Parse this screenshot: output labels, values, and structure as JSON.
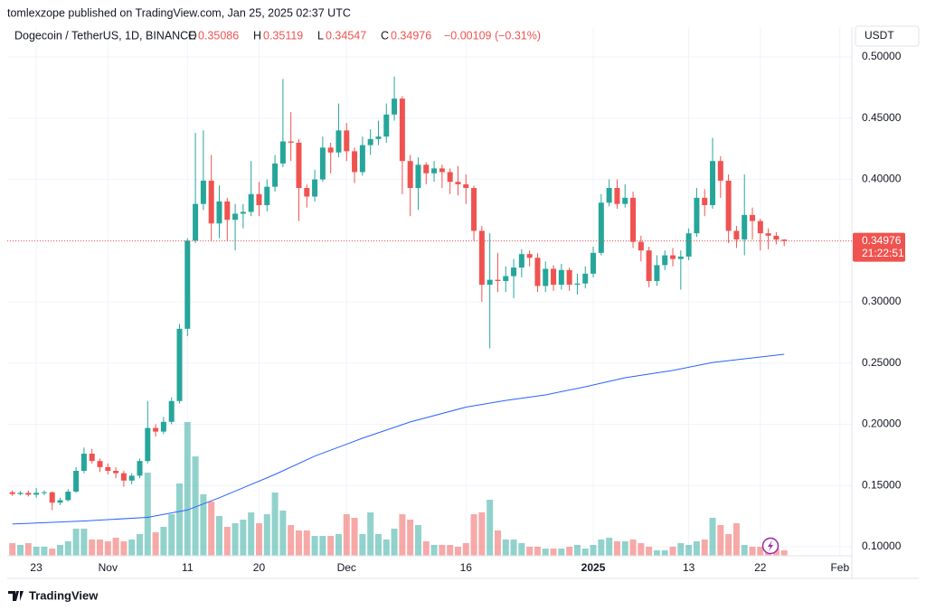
{
  "header": "tomlexzope published on TradingView.com, Jan 25, 2025 02:37 UTC",
  "footer": "TradingView",
  "chart_data": {
    "type": "candlestick",
    "legend": {
      "symbol": "Dogecoin / TetherUS, 1D, BINANCE",
      "labels": [
        "O",
        "H",
        "L",
        "C"
      ],
      "change": "−0.00109 (−0.31%)"
    },
    "currency": "USDT",
    "countdown": "21:22:51",
    "open": [
      0.1445,
      0.143,
      0.144,
      0.1425,
      0.144,
      0.1445,
      0.136,
      0.138,
      0.145,
      0.162,
      0.176,
      0.17,
      0.165,
      0.162,
      0.16,
      0.154,
      0.158,
      0.17,
      0.197,
      0.194,
      0.202,
      0.219,
      0.278,
      0.35,
      0.38,
      0.399,
      0.364,
      0.382,
      0.367,
      0.372,
      0.3735,
      0.388,
      0.379,
      0.394,
      0.413,
      0.431,
      0.43,
      0.393,
      0.386,
      0.4,
      0.426,
      0.422,
      0.44,
      0.423,
      0.406,
      0.428,
      0.433,
      0.435,
      0.453,
      0.466,
      0.415,
      0.393,
      0.412,
      0.405,
      0.409,
      0.406,
      0.398,
      0.396,
      0.393,
      0.358,
      0.314,
      0.318,
      0.317,
      0.321,
      0.328,
      0.339,
      0.336,
      0.313,
      0.327,
      0.314,
      0.326,
      0.314,
      0.315,
      0.323,
      0.34,
      0.381,
      0.393,
      0.38,
      0.385,
      0.349,
      0.342,
      0.317,
      0.33,
      0.338,
      0.335,
      0.337,
      0.356,
      0.385,
      0.379,
      0.415,
      0.399,
      0.358,
      0.351,
      0.371,
      0.366,
      0.356,
      0.354,
      0.35086
    ],
    "high": [
      0.146,
      0.1455,
      0.146,
      0.148,
      0.146,
      0.145,
      0.14,
      0.147,
      0.165,
      0.181,
      0.18,
      0.172,
      0.168,
      0.165,
      0.162,
      0.16,
      0.172,
      0.219,
      0.2,
      0.206,
      0.222,
      0.282,
      0.352,
      0.438,
      0.44,
      0.42,
      0.395,
      0.385,
      0.38,
      0.38,
      0.415,
      0.398,
      0.4,
      0.42,
      0.482,
      0.455,
      0.433,
      0.396,
      0.408,
      0.435,
      0.43,
      0.462,
      0.446,
      0.426,
      0.435,
      0.441,
      0.448,
      0.462,
      0.484,
      0.468,
      0.42,
      0.418,
      0.414,
      0.415,
      0.412,
      0.409,
      0.411,
      0.404,
      0.395,
      0.362,
      0.356,
      0.34,
      0.329,
      0.335,
      0.343,
      0.342,
      0.34,
      0.333,
      0.33,
      0.331,
      0.328,
      0.323,
      0.329,
      0.345,
      0.388,
      0.4,
      0.4,
      0.396,
      0.39,
      0.354,
      0.345,
      0.338,
      0.342,
      0.344,
      0.342,
      0.36,
      0.393,
      0.392,
      0.434,
      0.419,
      0.404,
      0.362,
      0.404,
      0.377,
      0.368,
      0.36,
      0.357,
      0.35119
    ],
    "low": [
      0.1415,
      0.142,
      0.141,
      0.14,
      0.142,
      0.13,
      0.134,
      0.137,
      0.144,
      0.16,
      0.168,
      0.161,
      0.159,
      0.156,
      0.149,
      0.151,
      0.156,
      0.168,
      0.19,
      0.192,
      0.2,
      0.217,
      0.272,
      0.348,
      0.375,
      0.35,
      0.352,
      0.35,
      0.342,
      0.36,
      0.37,
      0.37,
      0.374,
      0.39,
      0.41,
      0.415,
      0.366,
      0.377,
      0.382,
      0.398,
      0.405,
      0.418,
      0.415,
      0.397,
      0.403,
      0.42,
      0.428,
      0.43,
      0.448,
      0.388,
      0.37,
      0.375,
      0.396,
      0.398,
      0.393,
      0.388,
      0.387,
      0.38,
      0.35,
      0.3,
      0.262,
      0.308,
      0.308,
      0.303,
      0.32,
      0.329,
      0.308,
      0.308,
      0.309,
      0.31,
      0.309,
      0.306,
      0.311,
      0.32,
      0.338,
      0.378,
      0.376,
      0.377,
      0.344,
      0.333,
      0.312,
      0.313,
      0.326,
      0.329,
      0.31,
      0.334,
      0.353,
      0.37,
      0.376,
      0.385,
      0.348,
      0.344,
      0.338,
      0.351,
      0.342,
      0.343,
      0.347,
      0.34547
    ],
    "close": [
      0.143,
      0.144,
      0.1425,
      0.144,
      0.1445,
      0.136,
      0.138,
      0.145,
      0.162,
      0.176,
      0.17,
      0.165,
      0.162,
      0.16,
      0.154,
      0.158,
      0.17,
      0.197,
      0.194,
      0.202,
      0.219,
      0.278,
      0.35,
      0.38,
      0.399,
      0.364,
      0.382,
      0.367,
      0.372,
      0.3735,
      0.388,
      0.379,
      0.394,
      0.413,
      0.431,
      0.43,
      0.393,
      0.386,
      0.4,
      0.426,
      0.422,
      0.44,
      0.423,
      0.406,
      0.428,
      0.433,
      0.435,
      0.453,
      0.466,
      0.415,
      0.393,
      0.412,
      0.405,
      0.409,
      0.406,
      0.398,
      0.396,
      0.393,
      0.358,
      0.314,
      0.318,
      0.317,
      0.321,
      0.328,
      0.339,
      0.336,
      0.313,
      0.327,
      0.314,
      0.326,
      0.314,
      0.315,
      0.323,
      0.34,
      0.381,
      0.393,
      0.38,
      0.385,
      0.349,
      0.342,
      0.317,
      0.33,
      0.338,
      0.335,
      0.337,
      0.356,
      0.385,
      0.379,
      0.415,
      0.399,
      0.358,
      0.351,
      0.371,
      0.366,
      0.356,
      0.354,
      0.35086,
      0.34976
    ],
    "volume": [
      7,
      6,
      7,
      5,
      5,
      4,
      6,
      8,
      15,
      15,
      9,
      9,
      8,
      10,
      8,
      9,
      12,
      46,
      13,
      16,
      23,
      40,
      74,
      55,
      34,
      30,
      22,
      16,
      18,
      20,
      24,
      18,
      23,
      35,
      25,
      17,
      14,
      14,
      11,
      11,
      11,
      12,
      23,
      21,
      12,
      24,
      12,
      9,
      15,
      23,
      20,
      17,
      8,
      6,
      6,
      6,
      5,
      7,
      23,
      24,
      31,
      14,
      9,
      9,
      7,
      5,
      5,
      4,
      4,
      4,
      5,
      6,
      4,
      6,
      9,
      10,
      8,
      8,
      9,
      7,
      5,
      3,
      3,
      5,
      7,
      6,
      8,
      9,
      21,
      17,
      12,
      18,
      6,
      5,
      5,
      4,
      4,
      3
    ],
    "vlim": [
      0,
      100
    ],
    "moving_average": {
      "color": "#2962ff",
      "x": [
        0,
        9,
        17,
        22,
        26,
        33,
        38,
        44,
        50,
        57,
        62,
        67,
        72,
        77,
        83,
        88,
        97
      ],
      "values": [
        0.1185,
        0.121,
        0.124,
        0.13,
        0.14,
        0.159,
        0.174,
        0.1886,
        0.2019,
        0.214,
        0.2195,
        0.224,
        0.2306,
        0.238,
        0.244,
        0.2505,
        0.2572
      ]
    },
    "up_color": "#26a69a",
    "down_color": "#ef5350",
    "xlim": [
      -0.65,
      105.5
    ],
    "xticks": [
      {
        "value": 3,
        "label": "23"
      },
      {
        "value": 12,
        "label": "Nov"
      },
      {
        "value": 22,
        "label": "11"
      },
      {
        "value": 31,
        "label": "20"
      },
      {
        "value": 42,
        "label": "Dec"
      },
      {
        "value": 57,
        "label": "16"
      },
      {
        "value": 73,
        "label": "2025"
      },
      {
        "value": 85,
        "label": "13"
      },
      {
        "value": 94,
        "label": "22"
      },
      {
        "value": 104,
        "label": "Feb"
      }
    ],
    "ylim": [
      0.0926,
      0.5244
    ],
    "yticks": [
      {
        "value": 0.1,
        "label": "0.10000"
      },
      {
        "value": 0.15,
        "label": "0.15000"
      },
      {
        "value": 0.2,
        "label": "0.20000"
      },
      {
        "value": 0.25,
        "label": "0.25000"
      },
      {
        "value": 0.3,
        "label": "0.30000"
      },
      {
        "value": 0.35,
        "label": "0.35000"
      },
      {
        "value": 0.4,
        "label": "0.40000"
      },
      {
        "value": 0.45,
        "label": "0.45000"
      },
      {
        "value": 0.5,
        "label": "0.50000"
      }
    ],
    "grid": true
  }
}
